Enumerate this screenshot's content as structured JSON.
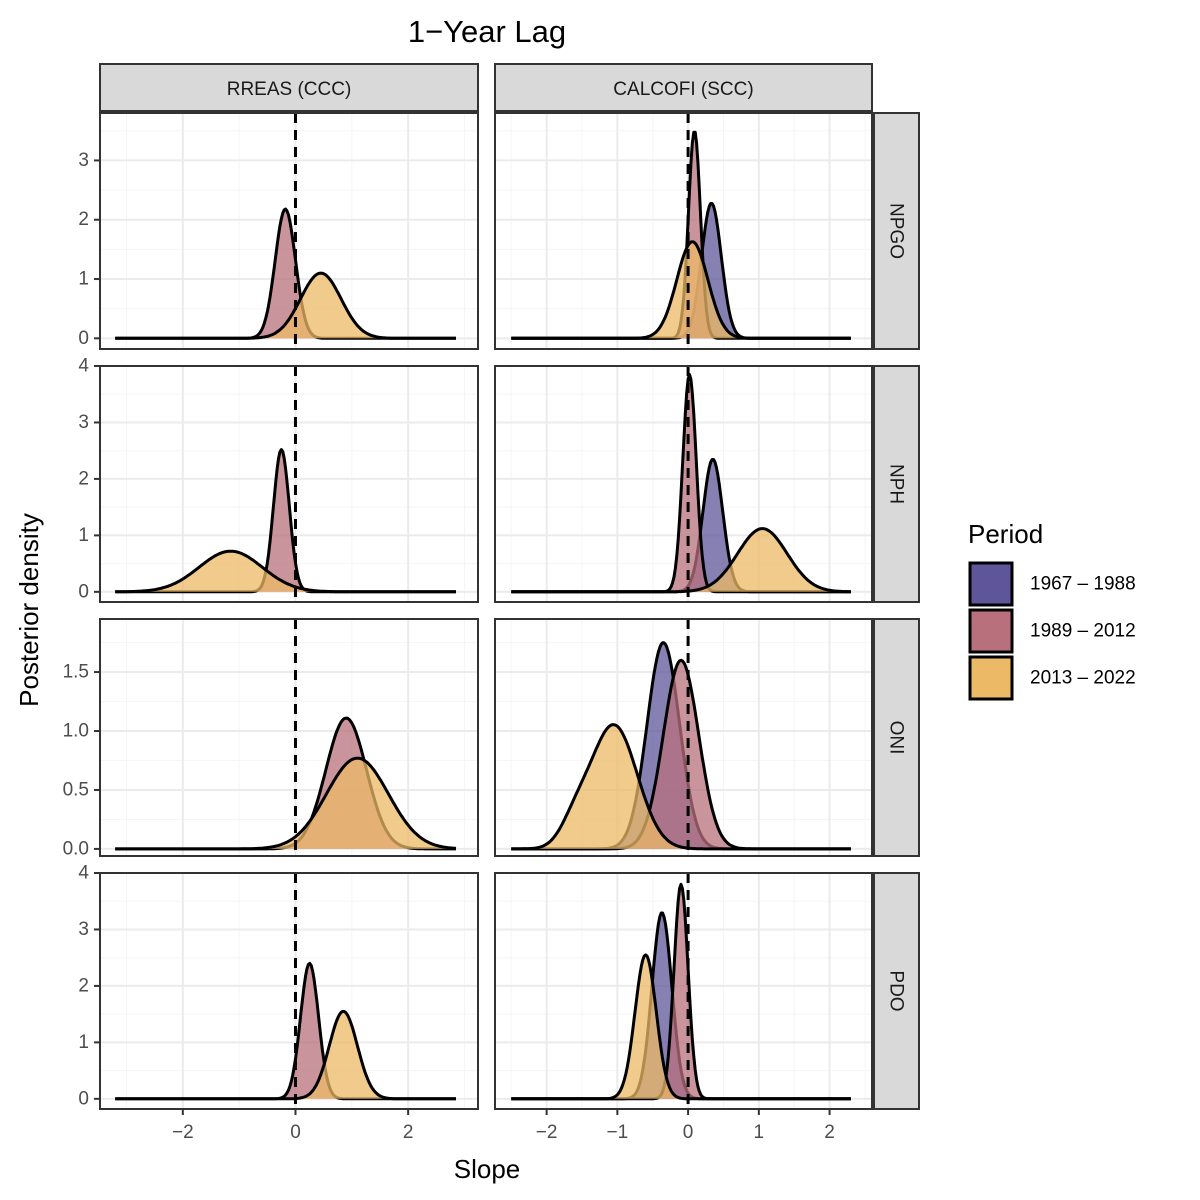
{
  "chart_data": {
    "type": "area",
    "title": "1−Year Lag",
    "xlabel": "Slope",
    "ylabel": "Posterior density",
    "columns": [
      "RREAS (CCC)",
      "CALCOFI (SCC)"
    ],
    "rows": [
      "NPGO",
      "NPH",
      "ONI",
      "PDO"
    ],
    "legend": {
      "title": "Period",
      "position": "right",
      "entries": [
        {
          "label": "1967 – 1988",
          "color": "#5e559a"
        },
        {
          "label": "1989 – 2012",
          "color": "#b8707c"
        },
        {
          "label": "2013 – 2022",
          "color": "#ecb966"
        }
      ]
    },
    "grid": true,
    "reference_line_x": 0,
    "colors": {
      "strip_bg": "#d9d9d9",
      "border": "#333333",
      "grid_major": "#ebebeb",
      "grid_minor": "#f5f5f5"
    },
    "panels": [
      {
        "row": "NPGO",
        "col": "RREAS (CCC)",
        "xlim": [
          -3.47,
          3.24
        ],
        "ylim": [
          -0.18,
          3.8
        ],
        "xticks": [
          -2,
          0,
          2
        ],
        "yticks": [
          0,
          1,
          2,
          3
        ],
        "ytick_labels": [
          "0",
          "1",
          "2",
          "3"
        ],
        "range": [
          -3.2,
          2.85
        ],
        "series": [
          {
            "period": "1989 – 2012",
            "components": [
              {
                "mu": -0.18,
                "sd": 0.18,
                "peak": 2.18
              }
            ]
          },
          {
            "period": "2013 – 2022",
            "components": [
              {
                "mu": 0.45,
                "sd": 0.36,
                "peak": 1.1
              }
            ]
          }
        ]
      },
      {
        "row": "NPGO",
        "col": "CALCOFI (SCC)",
        "xlim": [
          -2.73,
          2.6
        ],
        "ylim": [
          -0.18,
          3.8
        ],
        "xticks": [
          -2,
          -1,
          0,
          1,
          2
        ],
        "yticks": [
          0,
          1,
          2,
          3
        ],
        "ytick_labels": [
          "0",
          "1",
          "2",
          "3"
        ],
        "range": [
          -2.5,
          2.3
        ],
        "series": [
          {
            "period": "1967 – 1988",
            "components": [
              {
                "mu": 0.33,
                "sd": 0.14,
                "peak": 2.28
              }
            ]
          },
          {
            "period": "1989 – 2012",
            "components": [
              {
                "mu": 0.09,
                "sd": 0.085,
                "peak": 3.5
              }
            ]
          },
          {
            "period": "2013 – 2022",
            "components": [
              {
                "mu": 0.06,
                "sd": 0.22,
                "peak": 1.63
              }
            ]
          }
        ]
      },
      {
        "row": "NPH",
        "col": "RREAS (CCC)",
        "xlim": [
          -3.47,
          3.24
        ],
        "ylim": [
          -0.18,
          4.0
        ],
        "xticks": [
          -2,
          0,
          2
        ],
        "yticks": [
          0,
          1,
          2,
          3,
          4
        ],
        "ytick_labels": [
          "0",
          "1",
          "2",
          "3",
          "4"
        ],
        "range": [
          -3.2,
          2.85
        ],
        "series": [
          {
            "period": "1989 – 2012",
            "components": [
              {
                "mu": -0.25,
                "sd": 0.14,
                "peak": 2.52
              }
            ]
          },
          {
            "period": "2013 – 2022",
            "components": [
              {
                "mu": -1.15,
                "sd": 0.56,
                "peak": 0.72
              }
            ]
          }
        ]
      },
      {
        "row": "NPH",
        "col": "CALCOFI (SCC)",
        "xlim": [
          -2.73,
          2.6
        ],
        "ylim": [
          -0.18,
          4.0
        ],
        "xticks": [
          -2,
          -1,
          0,
          1,
          2
        ],
        "yticks": [
          0,
          1,
          2,
          3,
          4
        ],
        "ytick_labels": [
          "0",
          "1",
          "2",
          "3",
          "4"
        ],
        "range": [
          -2.5,
          2.3
        ],
        "series": [
          {
            "period": "1967 – 1988",
            "components": [
              {
                "mu": 0.35,
                "sd": 0.14,
                "peak": 2.35
              }
            ]
          },
          {
            "period": "1989 – 2012",
            "components": [
              {
                "mu": 0.02,
                "sd": 0.095,
                "peak": 3.85
              }
            ]
          },
          {
            "period": "2013 – 2022",
            "components": [
              {
                "mu": 1.05,
                "sd": 0.35,
                "peak": 1.12
              }
            ]
          }
        ]
      },
      {
        "row": "ONI",
        "col": "RREAS (CCC)",
        "xlim": [
          -3.47,
          3.24
        ],
        "ylim": [
          -0.06,
          1.95
        ],
        "xticks": [
          -2,
          0,
          2
        ],
        "yticks": [
          0,
          0.5,
          1,
          1.5
        ],
        "ytick_labels": [
          "0.0",
          "0.5",
          "1.0",
          "1.5"
        ],
        "range": [
          -3.2,
          2.85
        ],
        "series": [
          {
            "period": "1989 – 2012",
            "components": [
              {
                "mu": 0.9,
                "sd": 0.36,
                "peak": 1.11
              }
            ]
          },
          {
            "period": "2013 – 2022",
            "components": [
              {
                "mu": 1.1,
                "sd": 0.55,
                "peak": 0.77
              }
            ]
          }
        ]
      },
      {
        "row": "ONI",
        "col": "CALCOFI (SCC)",
        "xlim": [
          -2.73,
          2.6
        ],
        "ylim": [
          -0.06,
          1.95
        ],
        "xticks": [
          -2,
          -1,
          0,
          1,
          2
        ],
        "yticks": [
          0,
          0.5,
          1,
          1.5
        ],
        "ytick_labels": [
          "0.0",
          "0.5",
          "1.0",
          "1.5"
        ],
        "range": [
          -2.5,
          2.3
        ],
        "series": [
          {
            "period": "1967 – 1988",
            "components": [
              {
                "mu": -0.35,
                "sd": 0.23,
                "peak": 1.75
              }
            ]
          },
          {
            "period": "1989 – 2012",
            "components": [
              {
                "mu": -0.1,
                "sd": 0.25,
                "peak": 1.6
              }
            ]
          },
          {
            "period": "2013 – 2022",
            "components": [
              {
                "mu": -1.05,
                "sd": 0.33,
                "peak": 1.05
              },
              {
                "mu": -1.6,
                "sd": 0.2,
                "peak": 0.18
              }
            ]
          }
        ]
      },
      {
        "row": "PDO",
        "col": "RREAS (CCC)",
        "xlim": [
          -3.47,
          3.24
        ],
        "ylim": [
          -0.18,
          4.0
        ],
        "xticks": [
          -2,
          0,
          2
        ],
        "yticks": [
          0,
          1,
          2,
          3,
          4
        ],
        "ytick_labels": [
          "0",
          "1",
          "2",
          "3",
          "4"
        ],
        "range": [
          -3.2,
          2.85
        ],
        "series": [
          {
            "period": "1989 – 2012",
            "components": [
              {
                "mu": 0.25,
                "sd": 0.16,
                "peak": 2.4
              }
            ]
          },
          {
            "period": "2013 – 2022",
            "components": [
              {
                "mu": 0.85,
                "sd": 0.25,
                "peak": 1.55
              }
            ]
          }
        ]
      },
      {
        "row": "PDO",
        "col": "CALCOFI (SCC)",
        "xlim": [
          -2.73,
          2.6
        ],
        "ylim": [
          -0.18,
          4.0
        ],
        "xticks": [
          -2,
          -1,
          0,
          1,
          2
        ],
        "yticks": [
          0,
          1,
          2,
          3,
          4
        ],
        "ytick_labels": [
          "0",
          "1",
          "2",
          "3",
          "4"
        ],
        "range": [
          -2.5,
          2.3
        ],
        "series": [
          {
            "period": "1967 – 1988",
            "components": [
              {
                "mu": -0.37,
                "sd": 0.14,
                "peak": 3.3
              }
            ]
          },
          {
            "period": "1989 – 2012",
            "components": [
              {
                "mu": -0.1,
                "sd": 0.1,
                "peak": 3.8
              }
            ]
          },
          {
            "period": "2013 – 2022",
            "components": [
              {
                "mu": -0.6,
                "sd": 0.15,
                "peak": 2.55
              }
            ]
          }
        ]
      }
    ]
  }
}
